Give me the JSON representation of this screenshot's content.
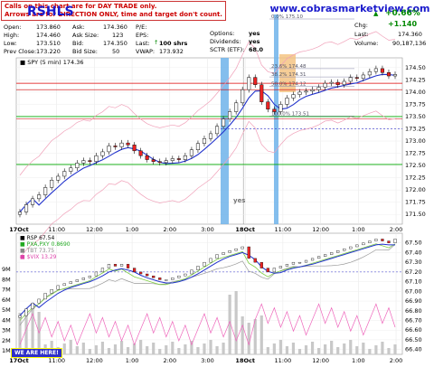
{
  "notice": {
    "line1": "Calls on this chart are for DAY TRADE only.",
    "line2": "Arrows are for DIRECTION ONLY, time and target don't count."
  },
  "brand": "www.cobrasmarketview.com",
  "ticker_fragment": "RSHLS",
  "quote": {
    "open_label": "Open:",
    "open": "173.860",
    "high_label": "High:",
    "high": "174.460",
    "low_label": "Low:",
    "low": "173.510",
    "prev_close_label": "Prev Close:",
    "prev_close": "173.220",
    "ask_label": "Ask:",
    "ask": "174.360",
    "ask_size_label": "Ask Size:",
    "ask_size": "123",
    "bid_label": "Bid:",
    "bid": "174.350",
    "bid_size_label": "Bid Size:",
    "bid_size": "50",
    "pe_label": "P/E:",
    "pe": "",
    "eps_label": "EPS:",
    "eps": "",
    "last_label": "Last:",
    "last_shares": "100 shrs",
    "vwap_label": "VWAP:",
    "vwap": "173.932",
    "options_label": "Options:",
    "options": "yes",
    "dividends_label": "Dividends:",
    "dividends": "yes",
    "sctr_label": "SCTR (ETF):",
    "sctr": "68.0",
    "pct_change": "+0.66%",
    "chg_label": "Chg:",
    "chg": "+1.140",
    "last2_label": "Last:",
    "last2": "174.360",
    "volume_label": "Volume:",
    "volume": "90,187,136"
  },
  "we_are_here": "WE ARE HERE!",
  "chart_data": [
    {
      "type": "line",
      "series_label": "SPY (5 min) 174.36",
      "x_tick_labels": [
        "17Oct",
        "11:00",
        "12:00",
        "1:00",
        "2:00",
        "3:00",
        "18Oct",
        "11:00",
        "12:00",
        "1:00",
        "2:00"
      ],
      "y_range": [
        171.3,
        174.7
      ],
      "y_ticks": [
        "174.50",
        "174.25",
        "174.00",
        "173.75",
        "173.50",
        "173.25",
        "173.00",
        "172.75",
        "172.50",
        "172.25",
        "172.00",
        "171.75",
        "171.50"
      ],
      "fib_levels": [
        {
          "label": "0.0%  175.10",
          "value": 175.1
        },
        {
          "label": "23.6%  174.48",
          "value": 174.48
        },
        {
          "label": "38.2%  174.31",
          "value": 174.31
        },
        {
          "label": "50.0%  174.12",
          "value": 174.12
        },
        {
          "label": "100.0%  173.51",
          "value": 173.51
        }
      ],
      "annotations": [
        "yes"
      ],
      "price_close": [
        171.55,
        171.7,
        171.82,
        171.9,
        172.05,
        172.2,
        172.28,
        172.38,
        172.45,
        172.55,
        172.6,
        172.58,
        172.7,
        172.78,
        172.9,
        172.88,
        172.96,
        172.92,
        172.8,
        172.7,
        172.62,
        172.58,
        172.56,
        172.6,
        172.64,
        172.62,
        172.7,
        172.82,
        172.95,
        173.05,
        173.15,
        173.3,
        173.45,
        173.6,
        173.78,
        174.05,
        174.3,
        174.15,
        173.8,
        173.65,
        173.6,
        173.75,
        173.88,
        173.95,
        174.0,
        174.02,
        174.05,
        174.1,
        174.18,
        174.2,
        174.15,
        174.22,
        174.3,
        174.28,
        174.35,
        174.42,
        174.48,
        174.4,
        174.33,
        174.36
      ]
    },
    {
      "type": "line",
      "legend": [
        "RSP 67.54",
        "PXA,PXY 0.8690",
        "TBT 73.75",
        "$VIX 13.29"
      ],
      "y_ticks_right": [
        "67.50",
        "67.40",
        "67.30",
        "67.20",
        "67.10",
        "67.00",
        "66.90",
        "66.80",
        "66.70",
        "66.60",
        "66.50",
        "66.40"
      ],
      "volume_ticks_left": [
        "9M",
        "8M",
        "7M",
        "6M",
        "5M",
        "4M",
        "3M",
        "2M",
        "1M"
      ],
      "x_tick_labels": [
        "17Oct",
        "11:00",
        "12:00",
        "1:00",
        "2:00",
        "3:00",
        "18Oct",
        "11:00",
        "12:00",
        "1:00",
        "2:00"
      ],
      "rsp_close": [
        66.75,
        66.82,
        66.88,
        66.92,
        66.98,
        67.02,
        67.06,
        67.08,
        67.1,
        67.12,
        67.14,
        67.16,
        67.2,
        67.24,
        67.28,
        67.26,
        67.28,
        67.24,
        67.2,
        67.18,
        67.16,
        67.14,
        67.12,
        67.12,
        67.14,
        67.16,
        67.18,
        67.22,
        67.26,
        67.3,
        67.34,
        67.38,
        67.4,
        67.42,
        67.44,
        67.46,
        67.34,
        67.3,
        67.24,
        67.2,
        67.24,
        67.26,
        67.28,
        67.3,
        67.3,
        67.32,
        67.34,
        67.36,
        67.38,
        67.4,
        67.42,
        67.44,
        67.46,
        67.48,
        67.5,
        67.52,
        67.54,
        67.52,
        67.5,
        67.54
      ]
    }
  ]
}
